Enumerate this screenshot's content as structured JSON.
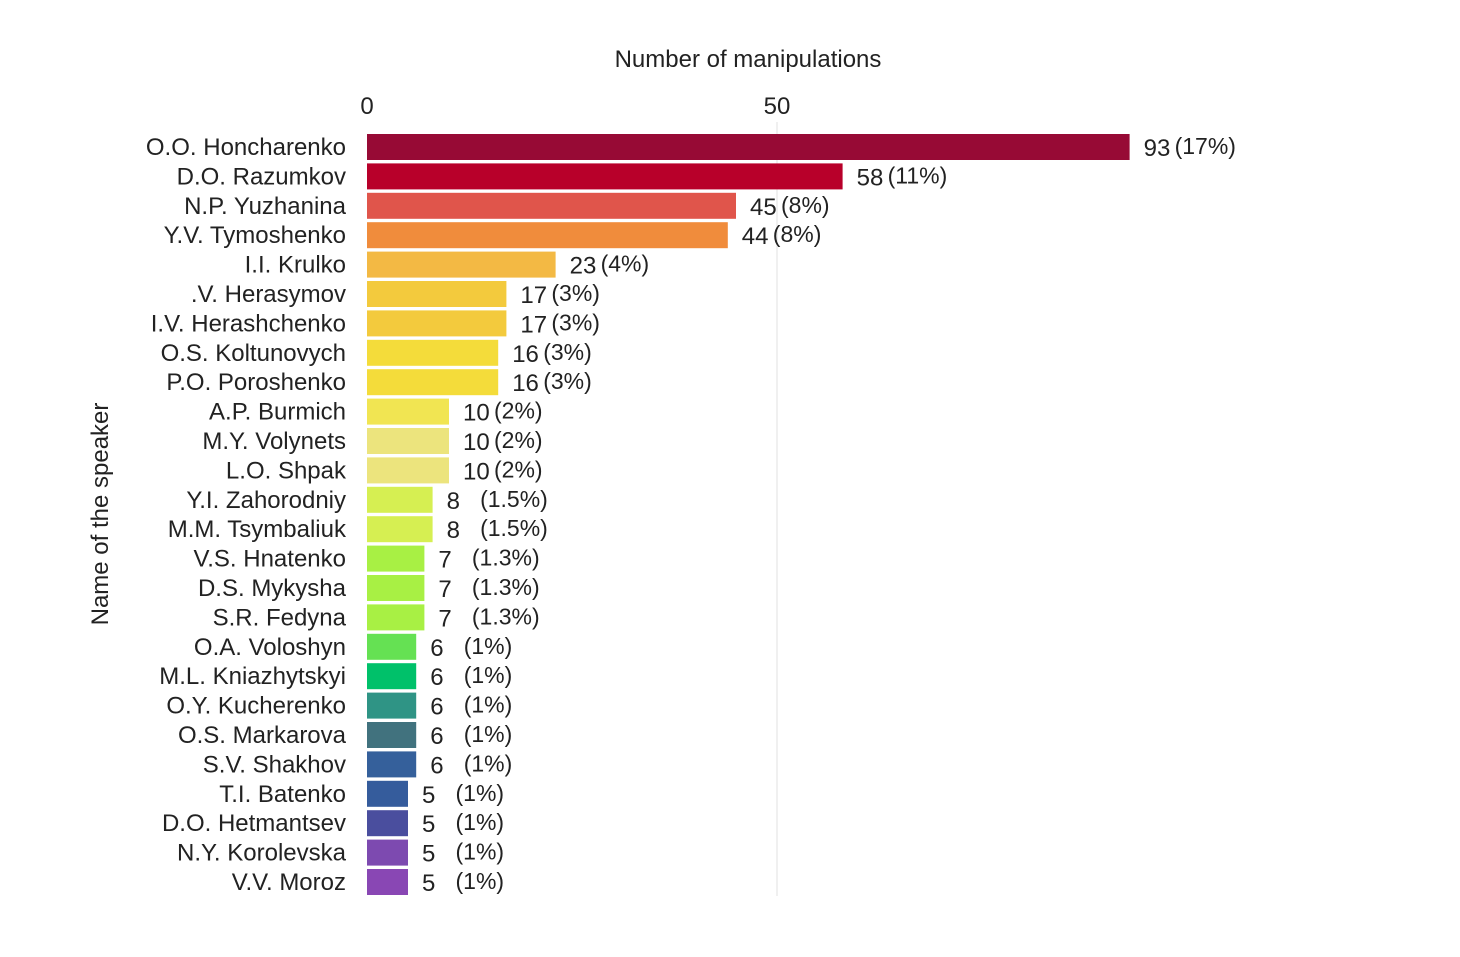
{
  "chart_data": {
    "type": "bar",
    "orientation": "horizontal",
    "xlabel": "Number of manipulations",
    "ylabel": "Name of the speaker",
    "x_ticks": [
      0,
      50
    ],
    "xlim": [
      0,
      100
    ],
    "grid": "vertical line at 50",
    "legend": "none",
    "categories": [
      "O.O. Honcharenko",
      "D.O. Razumkov",
      "N.P. Yuzhanina",
      "Y.V. Tymoshenko",
      "I.I. Krulko",
      ".V. Herasymov",
      "I.V. Herashchenko",
      "O.S. Koltunovych",
      "P.O. Poroshenko",
      "A.P. Burmich",
      "M.Y. Volynets",
      "L.O. Shpak",
      "Y.I. Zahorodniy",
      "M.M. Tsymbaliuk",
      "V.S. Hnatenko",
      "D.S. Mykysha",
      "S.R. Fedyna",
      "O.A. Voloshyn",
      "M.L. Kniazhytskyi",
      "O.Y. Kucherenko",
      "O.S. Markarova",
      "S.V. Shakhov",
      "T.I. Batenko",
      "D.O. Hetmantsev",
      "N.Y. Korolevska",
      "V.V. Moroz"
    ],
    "values": [
      93,
      58,
      45,
      44,
      23,
      17,
      17,
      16,
      16,
      10,
      10,
      10,
      8,
      8,
      7,
      7,
      7,
      6,
      6,
      6,
      6,
      6,
      5,
      5,
      5,
      5
    ],
    "value_labels": [
      "93",
      "58",
      "45",
      "44",
      "23",
      "17",
      "17",
      "16",
      "16",
      "10",
      "10",
      "10",
      "8",
      "8",
      "7",
      "7",
      "7",
      "6",
      "6",
      "6",
      "6",
      "6",
      "5",
      "5",
      "5",
      "5"
    ],
    "percent_labels": [
      "(17%)",
      "(11%)",
      "(8%)",
      "(8%)",
      "(4%)",
      "(3%)",
      "(3%)",
      "(3%)",
      "(3%)",
      "(2%)",
      "(2%)",
      "(2%)",
      "(1.5%)",
      "(1.5%)",
      "(1.3%)",
      "(1.3%)",
      "(1.3%)",
      "(1%)",
      "(1%)",
      "(1%)",
      "(1%)",
      "(1%)",
      "(1%)",
      "(1%)",
      "(1%)",
      "(1%)"
    ],
    "colors": [
      "#970a35",
      "#b8002a",
      "#e0554b",
      "#f08c3c",
      "#f3b944",
      "#f3ca3d",
      "#f3ca3d",
      "#f4dc3a",
      "#f4dc3a",
      "#f1e552",
      "#ece47d",
      "#ece47d",
      "#d6ef52",
      "#d6ef52",
      "#a8f044",
      "#a8f044",
      "#a8f044",
      "#65e153",
      "#00c16a",
      "#2f9485",
      "#41727e",
      "#35609b",
      "#355c9c",
      "#4a4e9e",
      "#7d4ab0",
      "#8947b4"
    ]
  }
}
